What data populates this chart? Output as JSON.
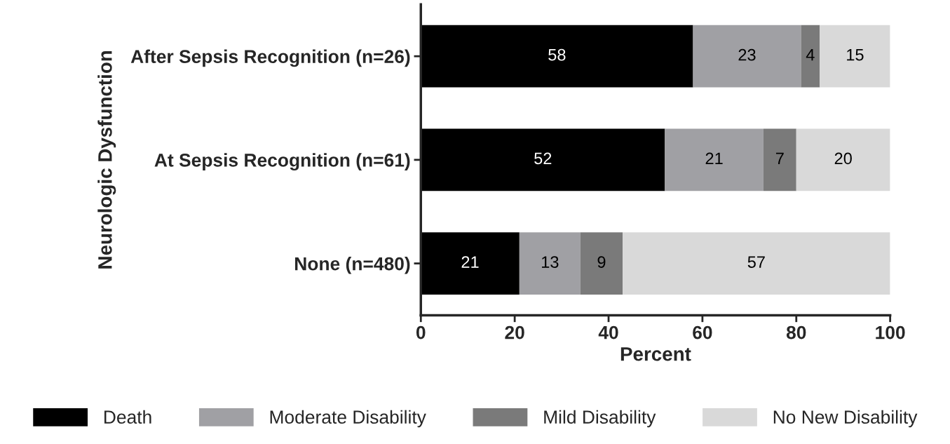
{
  "chart_data": {
    "type": "bar",
    "orientation": "horizontal",
    "stacked": true,
    "categories": [
      "After Sepsis Recognition (n=26)",
      "At Sepsis Recognition (n=61)",
      "None (n=480)"
    ],
    "series": [
      {
        "name": "Death",
        "color": "#000000",
        "values": [
          58,
          52,
          21
        ]
      },
      {
        "name": "Moderate Disability",
        "color": "#a0a0a4",
        "values": [
          23,
          21,
          13
        ]
      },
      {
        "name": "Mild Disability",
        "color": "#7a7a7a",
        "values": [
          4,
          7,
          9
        ]
      },
      {
        "name": "No New Disability",
        "color": "#d9d9d9",
        "values": [
          15,
          20,
          57
        ]
      }
    ],
    "xlim": [
      0,
      100
    ],
    "xticks": [
      0,
      20,
      40,
      60,
      80,
      100
    ],
    "xlabel": "Percent",
    "ylabel": "Neurologic Dysfunction",
    "data_labels": true,
    "legend": "bottom",
    "grid": false
  }
}
